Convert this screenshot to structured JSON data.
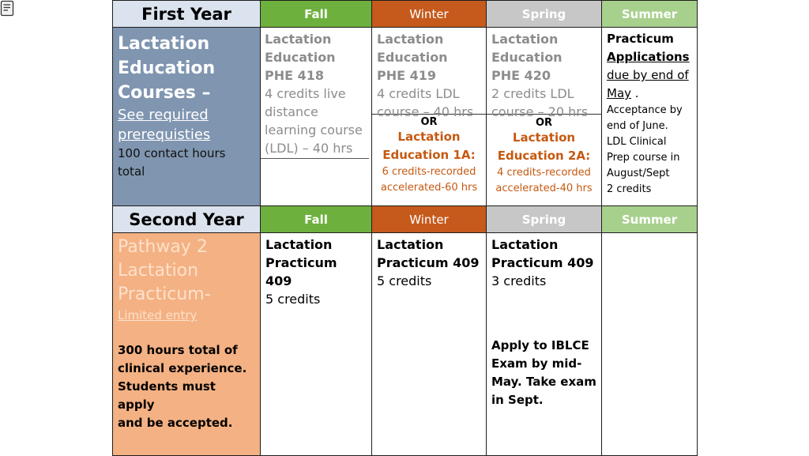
{
  "first_year": {
    "label": "First Year",
    "headers": {
      "fall": "Fall",
      "winter": "Winter",
      "spring": "Spring",
      "summer": "Summer"
    },
    "left": {
      "title_line1": "Lactation",
      "title_line2": "Education",
      "title_line3": "Courses –",
      "link_line1": "See required",
      "link_line2": "prerequisties",
      "text_line1": "100 contact hours",
      "text_line2": "total"
    },
    "fall": {
      "line1": "Lactation",
      "line2": "Education",
      "line3": "PHE 418",
      "line4": "4 credits live",
      "line5": "distance",
      "line6": "learning course",
      "line7": "(LDL) – 40 hrs"
    },
    "winter": {
      "line1": "Lactation",
      "line2": "Education",
      "line3": "PHE 419",
      "line4": "4 credits LDL",
      "line5": "course – 40 hrs",
      "or": "OR",
      "alt_title1": "Lactation",
      "alt_title2": "Education 1A:",
      "alt_text1": "6 credits-recorded",
      "alt_text2": "accelerated-60 hrs"
    },
    "spring": {
      "line1": "Lactation",
      "line2": "Education",
      "line3": "PHE 420",
      "line4": "2 credits LDL",
      "line5": "course – 20 hrs",
      "or": "OR",
      "alt_title1": "Lactation",
      "alt_title2": "Education 2A:",
      "alt_text1": "4 credits-recorded",
      "alt_text2": "accelerated-40 hrs"
    },
    "summer": {
      "line1": "Practicum",
      "line2": "Applications",
      "line3": "due by end of",
      "line4": "May",
      "line4_suffix": " .",
      "line5": "Acceptance by",
      "line6": "end of June.",
      "line7": "LDL Clinical",
      "line8": "Prep course in",
      "line9": "August/Sept",
      "line10": "2 credits"
    }
  },
  "second_year": {
    "label": "Second Year",
    "headers": {
      "fall": "Fall",
      "winter": "Winter",
      "spring": "Spring",
      "summer": "Summer"
    },
    "left": {
      "title_line1": "Pathway 2",
      "title_line2": "Lactation",
      "title_line3": "Practicum-",
      "link": "Limited entry",
      "text_line1": "300 hours total of",
      "text_line2": "clinical experience.",
      "text_line3": "Students must apply",
      "text_line4": "and be accepted."
    },
    "fall": {
      "line1": "Lactation",
      "line2": "Practicum 409",
      "line3": "5 credits"
    },
    "winter": {
      "line1": "Lactation",
      "line2": "Practicum 409",
      "line3": "5 credits"
    },
    "spring": {
      "line1": "Lactation",
      "line2": "Practicum 409",
      "line3": "3 credits",
      "note1": "Apply to IBLCE",
      "note2": "Exam by mid-",
      "note3": "May.  Take exam",
      "note4": "in Sept."
    }
  },
  "colors": {
    "fall": "#6eb03e",
    "winter": "#c55a1c",
    "spring": "#c7c7c7",
    "summer": "#a8d08d",
    "year_header": "#dbe3ee",
    "education_block": "#7f95b0",
    "practicum_block": "#f4b183",
    "alternate_text": "#c65911"
  }
}
